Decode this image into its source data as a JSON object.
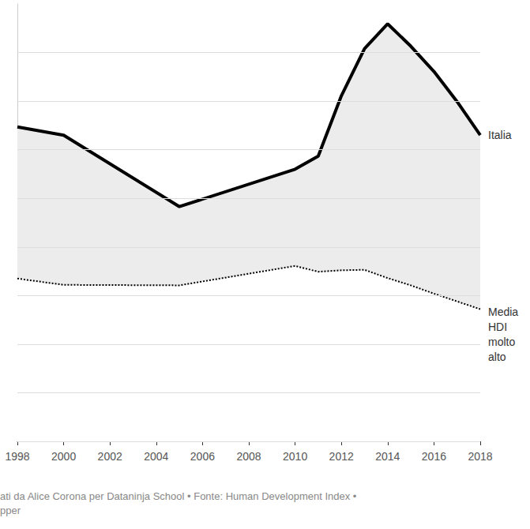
{
  "chart_data": {
    "type": "line",
    "x": [
      1998,
      2000,
      2005,
      2010,
      2011,
      2012,
      2013,
      2014,
      2015,
      2016,
      2017,
      2018
    ],
    "series": [
      {
        "name": "Italia",
        "color": "#000000",
        "line_style": "solid",
        "values": [
          6.47,
          6.3,
          4.83,
          5.6,
          5.87,
          7.11,
          8.08,
          8.59,
          8.13,
          7.61,
          6.99,
          6.3
        ]
      },
      {
        "name": "Media HDI molto alto",
        "color": "#000000",
        "line_style": "dotted",
        "values": [
          3.35,
          3.22,
          3.21,
          3.61,
          3.49,
          3.52,
          3.53,
          3.36,
          3.21,
          3.04,
          2.88,
          2.72
        ]
      }
    ],
    "xlim": [
      1998,
      2018
    ],
    "xticks": [
      1998,
      2000,
      2002,
      2004,
      2006,
      2008,
      2010,
      2012,
      2014,
      2016,
      2018
    ],
    "ylim": [
      0,
      9
    ],
    "yticks": [
      0,
      1,
      2,
      3,
      4,
      5,
      6,
      7,
      8
    ],
    "grid": true,
    "tick_labels": "x",
    "annotations": [
      "ati da Alice Corona per Dataninja School • Fonte: Human Development Index •",
      "pper"
    ]
  }
}
